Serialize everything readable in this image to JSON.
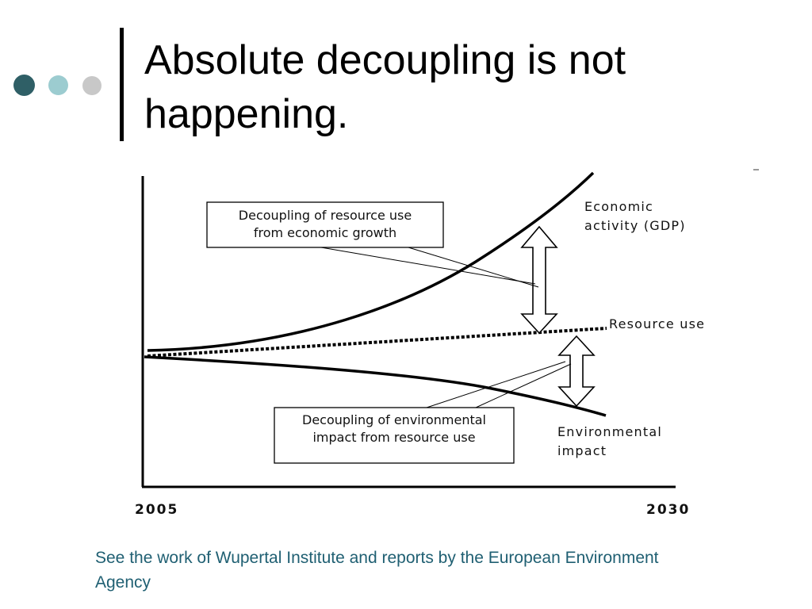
{
  "slide": {
    "title": "Absolute decoupling is not happening.",
    "caption": "See the work of Wupertal Institute and reports by the European Environment Agency"
  },
  "colors": {
    "accent_dark": "#2f5f66",
    "accent_light": "#9cccd0",
    "accent_gray": "#c8c8c8",
    "caption_text": "#1f5f72"
  },
  "diagram": {
    "curves": {
      "gdp": {
        "label_line1": "Economic",
        "label_line2": "activity (GDP)"
      },
      "resource": {
        "label": "Resource use"
      },
      "impact": {
        "label_line1": "Environmental",
        "label_line2": "impact"
      }
    },
    "callouts": {
      "top": {
        "line1": "Decoupling of resource use",
        "line2": "from economic growth"
      },
      "bottom": {
        "line1": "Decoupling of environmental",
        "line2": "impact from resource use"
      }
    },
    "x_axis": {
      "start": "2005",
      "end": "2030"
    }
  }
}
